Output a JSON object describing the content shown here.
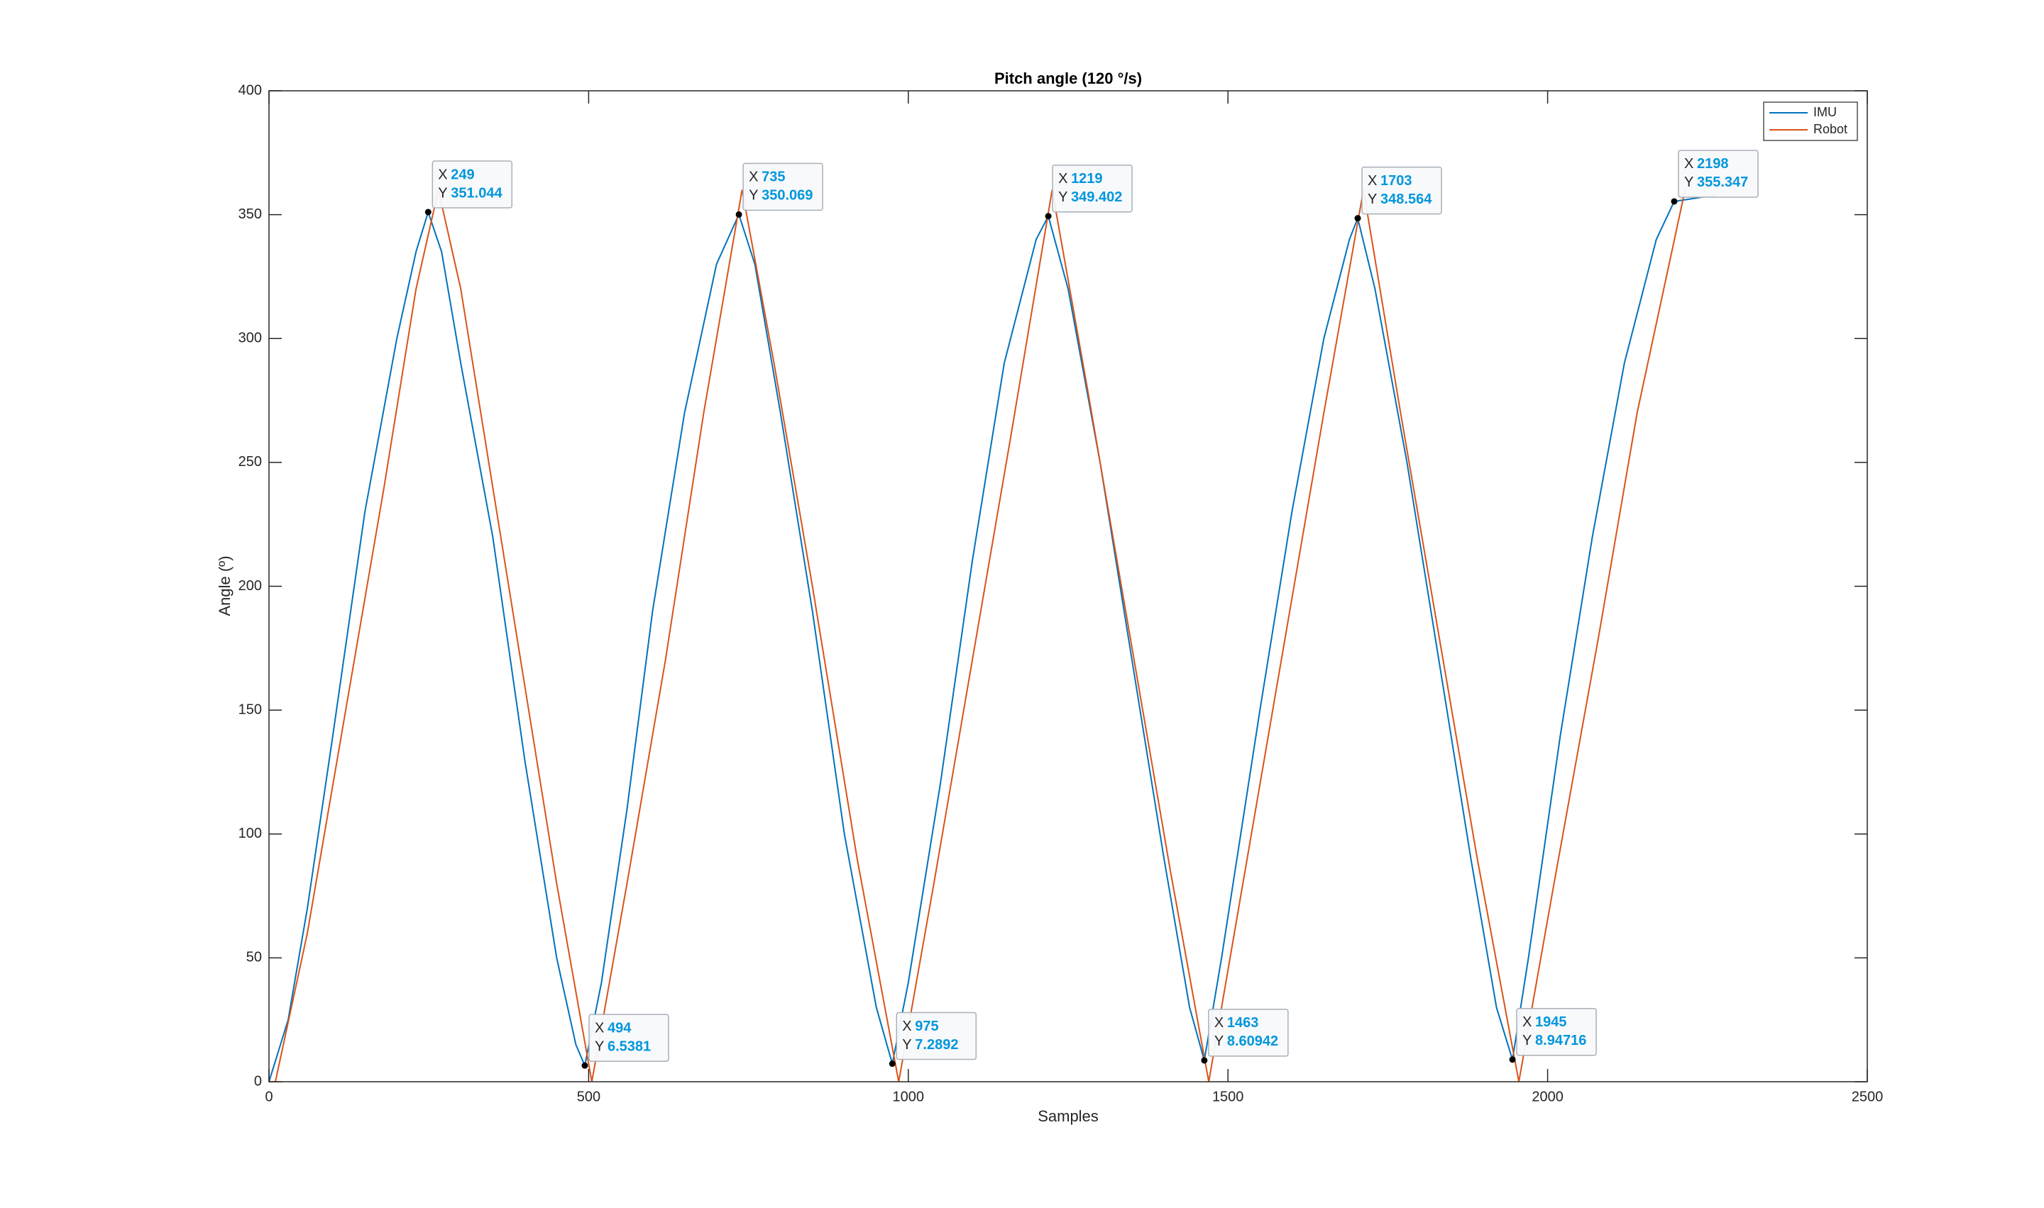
{
  "chart_data": {
    "type": "line",
    "title": "Pitch angle (120 °/s)",
    "x_label": "Samples",
    "y_label": "Angle (º)",
    "xlim": [
      0,
      2500
    ],
    "xticks": [
      0,
      500,
      1000,
      1500,
      2000,
      2500
    ],
    "ylim": [
      0,
      400
    ],
    "yticks": [
      0,
      50,
      100,
      150,
      200,
      250,
      300,
      350,
      400
    ],
    "grid": false,
    "box": true,
    "legend": "top-right",
    "series": [
      {
        "name": "IMU",
        "color": "#0072bd",
        "x": [
          0,
          30,
          60,
          100,
          150,
          200,
          230,
          249,
          270,
          300,
          350,
          400,
          450,
          480,
          494,
          520,
          560,
          600,
          650,
          700,
          735,
          760,
          800,
          850,
          900,
          950,
          975,
          1000,
          1050,
          1100,
          1150,
          1200,
          1219,
          1250,
          1300,
          1350,
          1400,
          1440,
          1463,
          1490,
          1550,
          1600,
          1650,
          1690,
          1703,
          1730,
          1780,
          1830,
          1880,
          1920,
          1945,
          1970,
          2020,
          2070,
          2120,
          2170,
          2198,
          2240,
          2265
        ],
        "values": [
          0,
          25,
          70,
          140,
          230,
          300,
          335,
          351.044,
          335,
          290,
          220,
          130,
          50,
          15,
          6.5381,
          40,
          110,
          190,
          270,
          330,
          350.069,
          330,
          270,
          190,
          100,
          30,
          7.2892,
          40,
          120,
          210,
          290,
          340,
          349.402,
          320,
          250,
          170,
          90,
          30,
          8.60942,
          50,
          150,
          230,
          300,
          340,
          348.564,
          320,
          250,
          170,
          90,
          30,
          8.94716,
          50,
          140,
          220,
          290,
          340,
          355.347,
          357,
          358
        ]
      },
      {
        "name": "Robot",
        "color": "#d95319",
        "x": [
          10,
          60,
          120,
          180,
          230,
          265,
          300,
          350,
          400,
          450,
          505,
          560,
          620,
          680,
          740,
          790,
          850,
          920,
          985,
          1040,
          1100,
          1160,
          1225,
          1280,
          1350,
          1410,
          1470,
          1530,
          1590,
          1650,
          1712,
          1770,
          1830,
          1890,
          1955,
          2010,
          2080,
          2140,
          2215
        ],
        "values": [
          0,
          60,
          150,
          240,
          320,
          360,
          320,
          240,
          160,
          80,
          0,
          80,
          170,
          270,
          360,
          290,
          200,
          90,
          0,
          80,
          170,
          260,
          360,
          280,
          175,
          85,
          0,
          90,
          180,
          270,
          360,
          270,
          180,
          90,
          0,
          80,
          180,
          270,
          360
        ]
      }
    ],
    "datatip_prefixes": [
      "X",
      "Y"
    ],
    "datatips": [
      {
        "x": 249,
        "y": 351.044
      },
      {
        "x": 494,
        "y": 6.5381
      },
      {
        "x": 735,
        "y": 350.069
      },
      {
        "x": 975,
        "y": 7.2892
      },
      {
        "x": 1219,
        "y": 349.402
      },
      {
        "x": 1463,
        "y": 8.60942
      },
      {
        "x": 1703,
        "y": 348.564
      },
      {
        "x": 1945,
        "y": 8.94716
      },
      {
        "x": 2198,
        "y": 355.347
      }
    ]
  }
}
